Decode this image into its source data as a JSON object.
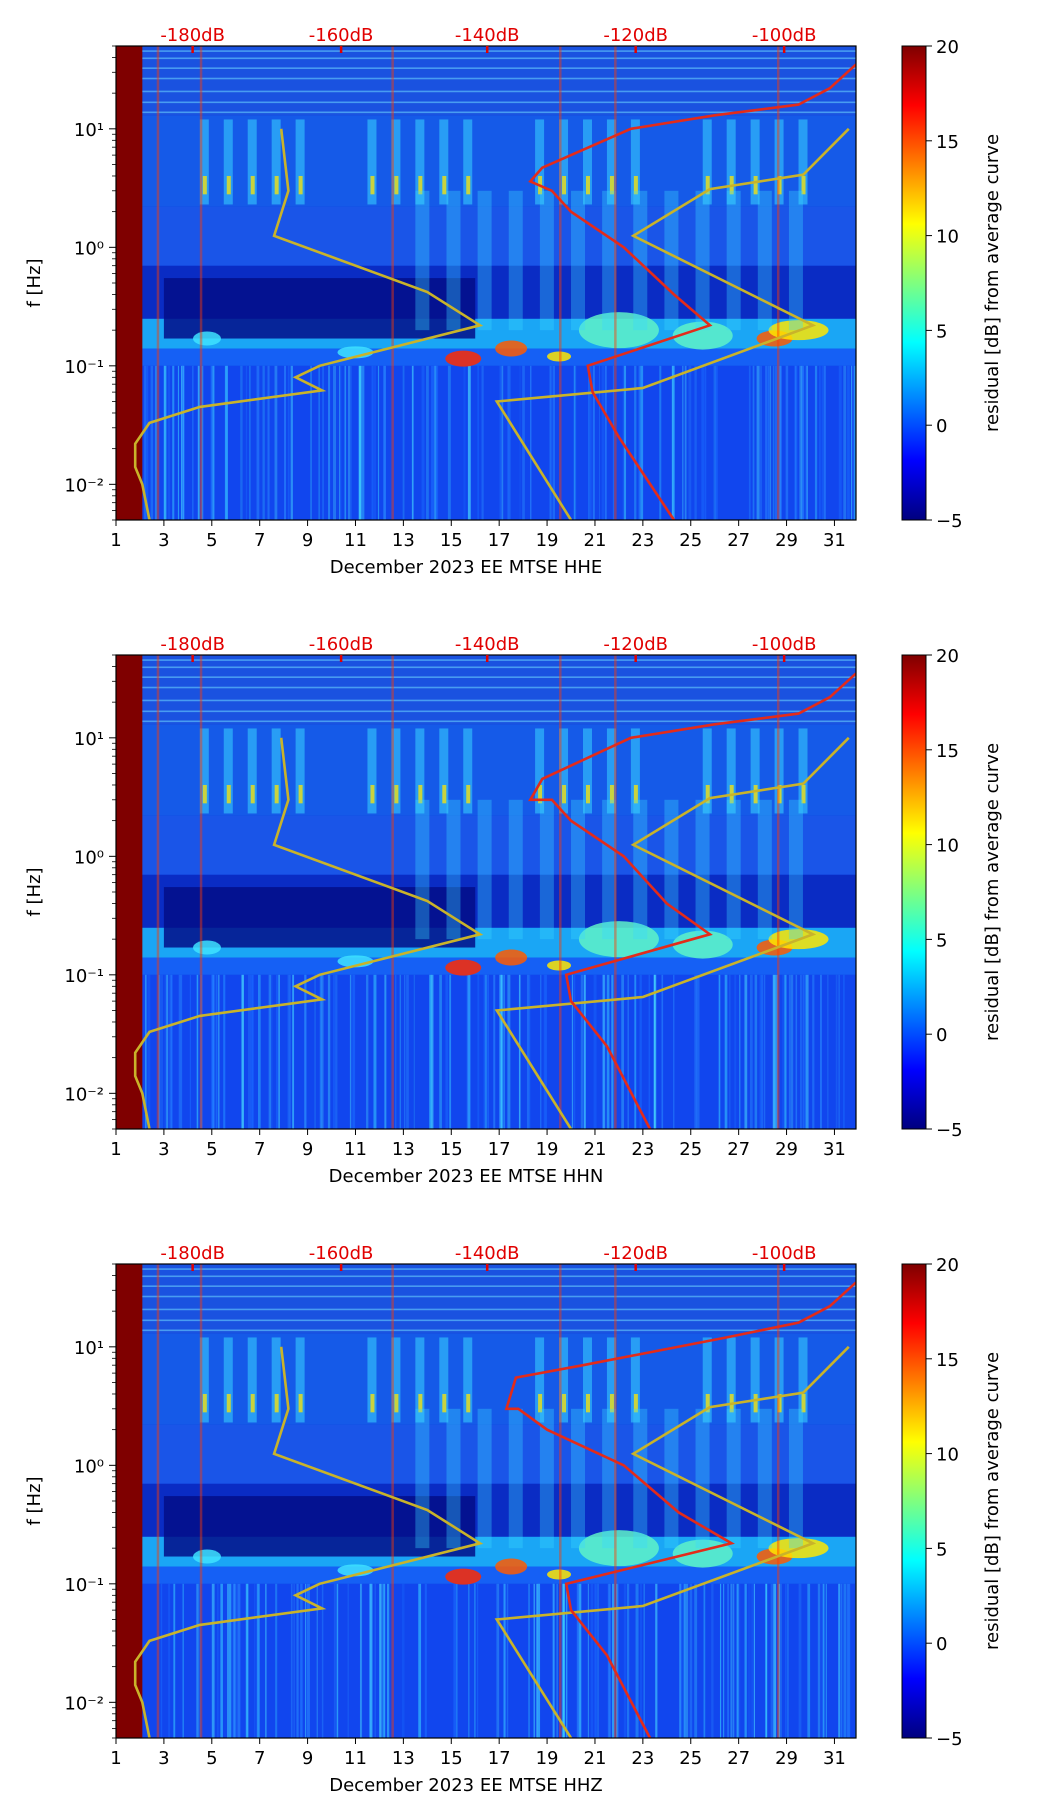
{
  "colors": {
    "nlnm_curve": "#e32b1a",
    "nhnm_curve": "#c9b32a",
    "db_label": "#e10000",
    "axis": "#000000"
  },
  "colormap": [
    "#00007f",
    "#0000ff",
    "#007fff",
    "#00ffff",
    "#7fff7f",
    "#ffff00",
    "#ff7f00",
    "#ff0000",
    "#7f0000"
  ],
  "chart_data": [
    {
      "type": "heatmap",
      "title": "",
      "xlabel": "December 2023 EE MTSE  HHE",
      "ylabel": "f [Hz]",
      "colorbar_label": "residual [dB] from average curve",
      "xlim": [
        1,
        31.9
      ],
      "ylim": [
        0.005,
        50
      ],
      "yscale": "log",
      "clim": [
        -5,
        20
      ],
      "x_ticks": [
        1,
        3,
        5,
        7,
        9,
        11,
        13,
        15,
        17,
        19,
        21,
        23,
        25,
        27,
        29,
        31
      ],
      "y_ticks": [
        {
          "value": 0.01,
          "label": "10⁻²"
        },
        {
          "value": 0.1,
          "label": "10⁻¹"
        },
        {
          "value": 1,
          "label": "10⁰"
        },
        {
          "value": 10,
          "label": "10¹"
        }
      ],
      "colorbar_ticks": [
        -5,
        0,
        5,
        10,
        15,
        20
      ],
      "db_labels": [
        {
          "x": 4.2,
          "label": "-180dB"
        },
        {
          "x": 10.4,
          "label": "-160dB"
        },
        {
          "x": 16.5,
          "label": "-140dB"
        },
        {
          "x": 22.7,
          "label": "-120dB"
        },
        {
          "x": 28.9,
          "label": "-100dB"
        }
      ],
      "nhnm": [
        [
          2.4,
          0.005
        ],
        [
          2.1,
          0.01
        ],
        [
          1.8,
          0.014
        ],
        [
          1.8,
          0.022
        ],
        [
          2.4,
          0.033
        ],
        [
          4.5,
          0.045
        ],
        [
          9.6,
          0.062
        ],
        [
          8.5,
          0.08
        ],
        [
          9.5,
          0.1
        ],
        [
          16.2,
          0.22
        ],
        [
          14,
          0.42
        ],
        [
          7.6,
          1.25
        ],
        [
          8.2,
          3
        ],
        [
          7.9,
          10
        ],
        [
          20,
          0.005
        ],
        [
          16.9,
          0.05
        ],
        [
          23,
          0.065
        ],
        [
          30.1,
          0.22
        ],
        [
          22.6,
          1.25
        ],
        [
          25.8,
          3.1
        ],
        [
          29.7,
          4.1
        ],
        [
          31.6,
          10
        ]
      ],
      "nlnm": [
        [
          24.3,
          0.005
        ],
        [
          22,
          0.025
        ],
        [
          20.9,
          0.06
        ],
        [
          20.7,
          0.1
        ],
        [
          25.8,
          0.22
        ],
        [
          24.3,
          0.4
        ],
        [
          22.2,
          1
        ],
        [
          20,
          2
        ],
        [
          19.2,
          3
        ],
        [
          18.3,
          3.6
        ],
        [
          18.8,
          4.7
        ],
        [
          22.5,
          10
        ],
        [
          26,
          13
        ],
        [
          29.5,
          16
        ],
        [
          30.8,
          22
        ],
        [
          31.9,
          35
        ]
      ],
      "_nlnm_split": 4
    },
    {
      "type": "heatmap",
      "title": "",
      "xlabel": "December 2023 EE MTSE  HHN",
      "ylabel": "f [Hz]",
      "colorbar_label": "residual [dB] from average curve",
      "xlim": [
        1,
        31.9
      ],
      "ylim": [
        0.005,
        50
      ],
      "yscale": "log",
      "clim": [
        -5,
        20
      ],
      "x_ticks": [
        1,
        3,
        5,
        7,
        9,
        11,
        13,
        15,
        17,
        19,
        21,
        23,
        25,
        27,
        29,
        31
      ],
      "y_ticks": [
        {
          "value": 0.01,
          "label": "10⁻²"
        },
        {
          "value": 0.1,
          "label": "10⁻¹"
        },
        {
          "value": 1,
          "label": "10⁰"
        },
        {
          "value": 10,
          "label": "10¹"
        }
      ],
      "colorbar_ticks": [
        -5,
        0,
        5,
        10,
        15,
        20
      ],
      "db_labels": [
        {
          "x": 4.2,
          "label": "-180dB"
        },
        {
          "x": 10.4,
          "label": "-160dB"
        },
        {
          "x": 16.5,
          "label": "-140dB"
        },
        {
          "x": 22.7,
          "label": "-120dB"
        },
        {
          "x": 28.9,
          "label": "-100dB"
        }
      ],
      "nhnm": [
        [
          2.4,
          0.005
        ],
        [
          2.1,
          0.01
        ],
        [
          1.8,
          0.014
        ],
        [
          1.8,
          0.022
        ],
        [
          2.4,
          0.033
        ],
        [
          4.5,
          0.045
        ],
        [
          9.6,
          0.062
        ],
        [
          8.5,
          0.08
        ],
        [
          9.5,
          0.1
        ],
        [
          16.2,
          0.22
        ],
        [
          14,
          0.42
        ],
        [
          7.6,
          1.25
        ],
        [
          8.2,
          3
        ],
        [
          7.9,
          10
        ],
        [
          20,
          0.005
        ],
        [
          16.9,
          0.05
        ],
        [
          23,
          0.065
        ],
        [
          30.1,
          0.22
        ],
        [
          22.6,
          1.25
        ],
        [
          25.8,
          3.1
        ],
        [
          29.7,
          4.1
        ],
        [
          31.6,
          10
        ]
      ],
      "nlnm": [
        [
          23.3,
          0.005
        ],
        [
          21.5,
          0.025
        ],
        [
          20,
          0.06
        ],
        [
          19.8,
          0.1
        ],
        [
          25.8,
          0.22
        ],
        [
          24,
          0.4
        ],
        [
          22.2,
          1
        ],
        [
          20,
          2
        ],
        [
          19.2,
          3
        ],
        [
          18.3,
          3
        ],
        [
          18.8,
          4.5
        ],
        [
          22.5,
          10
        ],
        [
          26,
          13
        ],
        [
          29.5,
          16
        ],
        [
          30.8,
          22
        ],
        [
          31.9,
          35
        ]
      ],
      "_nlnm_split": 4
    },
    {
      "type": "heatmap",
      "title": "",
      "xlabel": "December 2023 EE MTSE  HHZ",
      "ylabel": "f [Hz]",
      "colorbar_label": "residual [dB] from average curve",
      "xlim": [
        1,
        31.9
      ],
      "ylim": [
        0.005,
        50
      ],
      "yscale": "log",
      "clim": [
        -5,
        20
      ],
      "x_ticks": [
        1,
        3,
        5,
        7,
        9,
        11,
        13,
        15,
        17,
        19,
        21,
        23,
        25,
        27,
        29,
        31
      ],
      "y_ticks": [
        {
          "value": 0.01,
          "label": "10⁻²"
        },
        {
          "value": 0.1,
          "label": "10⁻¹"
        },
        {
          "value": 1,
          "label": "10⁰"
        },
        {
          "value": 10,
          "label": "10¹"
        }
      ],
      "colorbar_ticks": [
        -5,
        0,
        5,
        10,
        15,
        20
      ],
      "db_labels": [
        {
          "x": 4.2,
          "label": "-180dB"
        },
        {
          "x": 10.4,
          "label": "-160dB"
        },
        {
          "x": 16.5,
          "label": "-140dB"
        },
        {
          "x": 22.7,
          "label": "-120dB"
        },
        {
          "x": 28.9,
          "label": "-100dB"
        }
      ],
      "nhnm": [
        [
          2.4,
          0.005
        ],
        [
          2.1,
          0.01
        ],
        [
          1.8,
          0.014
        ],
        [
          1.8,
          0.022
        ],
        [
          2.4,
          0.033
        ],
        [
          4.5,
          0.045
        ],
        [
          9.6,
          0.062
        ],
        [
          8.5,
          0.08
        ],
        [
          9.5,
          0.1
        ],
        [
          16.2,
          0.22
        ],
        [
          14,
          0.42
        ],
        [
          7.6,
          1.25
        ],
        [
          8.2,
          3
        ],
        [
          7.9,
          10
        ],
        [
          20,
          0.005
        ],
        [
          16.9,
          0.05
        ],
        [
          23,
          0.065
        ],
        [
          30.1,
          0.22
        ],
        [
          22.6,
          1.25
        ],
        [
          25.8,
          3.1
        ],
        [
          29.7,
          4.1
        ],
        [
          31.6,
          10
        ]
      ],
      "nlnm": [
        [
          23.3,
          0.005
        ],
        [
          21.5,
          0.025
        ],
        [
          20,
          0.06
        ],
        [
          19.8,
          0.1
        ],
        [
          26.7,
          0.22
        ],
        [
          24.5,
          0.4
        ],
        [
          22.2,
          1
        ],
        [
          19,
          2
        ],
        [
          17.8,
          3
        ],
        [
          17.3,
          3
        ],
        [
          17.7,
          5.5
        ],
        [
          20.5,
          7
        ],
        [
          26.5,
          12
        ],
        [
          29.5,
          16
        ],
        [
          30.8,
          22
        ],
        [
          31.9,
          35
        ]
      ],
      "_nlnm_split": 4
    }
  ]
}
